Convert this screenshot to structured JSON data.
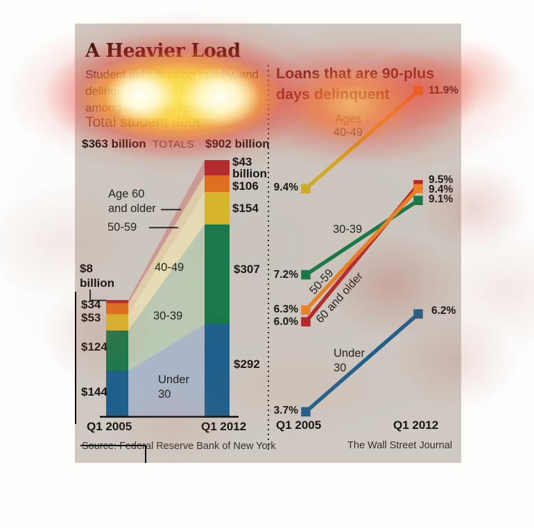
{
  "header": {
    "title": "A Heavier Load",
    "subtitle_lines": [
      "Student debt is rising rapidly, and",
      "delinquencies are increasing",
      "among all age groups."
    ]
  },
  "left_chart": {
    "heading": "Total student debt",
    "totals_label": "TOTALS",
    "total_2005": "$363 billion",
    "total_2012": "$902 billion",
    "x_labels": [
      "Q1 2005",
      "Q1 2012"
    ],
    "source": "Source: Federal Reserve Bank of New York"
  },
  "right_chart": {
    "title_lines": [
      "Loans that are 90-plus",
      "days delinquent"
    ],
    "x_labels": [
      "Q1 2005",
      "Q1 2012"
    ],
    "credit": "The Wall Street Journal"
  },
  "palette": {
    "age_60_older": "#b5272b",
    "age_50_59": "#e0701c",
    "age_40_49": "#dcb72a",
    "age_30_39": "#16784a",
    "under_30": "#1d5f8c",
    "panel_bg": "#cfc9c2"
  },
  "chart_data": [
    {
      "type": "bar",
      "subtype": "stacked-bar-flow",
      "title": "Total student debt",
      "unit": "billions of dollars",
      "categories": [
        "Q1 2005",
        "Q1 2012"
      ],
      "totals": [
        363,
        902
      ],
      "series": [
        {
          "name": "Age 60 and older",
          "values": [
            8,
            43
          ],
          "label_2005": "$8 billion",
          "label_2012": "$43 billion",
          "color": "#b5272b"
        },
        {
          "name": "50-59",
          "values": [
            34,
            106
          ],
          "label_2005": "$34",
          "label_2012": "$106",
          "color": "#e0701c"
        },
        {
          "name": "40-49",
          "values": [
            53,
            154
          ],
          "label_2005": "$53",
          "label_2012": "$154",
          "color": "#dcb72a"
        },
        {
          "name": "30-39",
          "values": [
            124,
            307
          ],
          "label_2005": "$124",
          "label_2012": "$307",
          "color": "#16784a"
        },
        {
          "name": "Under 30",
          "values": [
            144,
            292
          ],
          "label_2005": "$144",
          "label_2012": "$292",
          "color": "#1d5f8c"
        }
      ]
    },
    {
      "type": "line",
      "subtype": "slope",
      "title": "Loans that are 90-plus days delinquent",
      "unit": "percent",
      "x": [
        "Q1 2005",
        "Q1 2012"
      ],
      "series": [
        {
          "name": "Ages 40-49",
          "values": [
            9.4,
            11.9
          ],
          "label_2005": "9.4%",
          "label_2012": "11.9%",
          "color_start": "#cfae25",
          "color_end": "#f39b13"
        },
        {
          "name": "30-39",
          "values": [
            7.2,
            9.1
          ],
          "label_2005": "7.2%",
          "label_2012": "9.1%",
          "color": "#16784a"
        },
        {
          "name": "50-59",
          "values": [
            6.3,
            9.4
          ],
          "label_2005": "6.3%",
          "label_2012": "9.4%",
          "color": "#eb8223"
        },
        {
          "name": "60 and older",
          "values": [
            6.0,
            9.5
          ],
          "label_2005": "6.0%",
          "label_2012": "9.5%",
          "color": "#b5272b"
        },
        {
          "name": "Under 30",
          "values": [
            3.7,
            6.2
          ],
          "label_2005": "3.7%",
          "label_2012": "6.2%",
          "color": "#1d5f8c"
        }
      ]
    }
  ]
}
